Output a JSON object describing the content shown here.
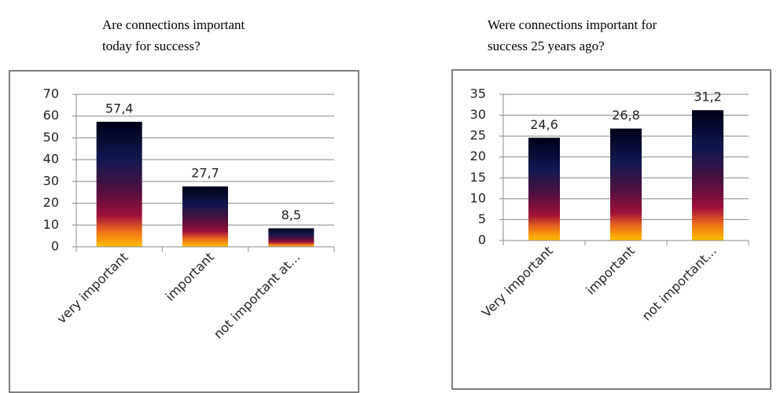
{
  "chart_data": [
    {
      "type": "bar",
      "title": "Are connections important today for success?",
      "categories": [
        "very important",
        "important",
        "not important at..."
      ],
      "values": [
        57.4,
        27.7,
        8.5
      ],
      "value_labels": [
        "57,4",
        "27,7",
        "8,5"
      ],
      "ylim": [
        0,
        70
      ],
      "yticks": [
        0,
        10,
        20,
        30,
        40,
        50,
        60,
        70
      ],
      "grid": true
    },
    {
      "type": "bar",
      "title": "Were connections important for success 25 years ago?",
      "categories": [
        "Very important",
        "important",
        "not important..."
      ],
      "values": [
        24.6,
        26.8,
        31.2
      ],
      "value_labels": [
        "24,6",
        "26,8",
        "31,2"
      ],
      "ylim": [
        0,
        35
      ],
      "yticks": [
        0,
        5,
        10,
        15,
        20,
        25,
        30,
        35
      ],
      "grid": true
    }
  ]
}
